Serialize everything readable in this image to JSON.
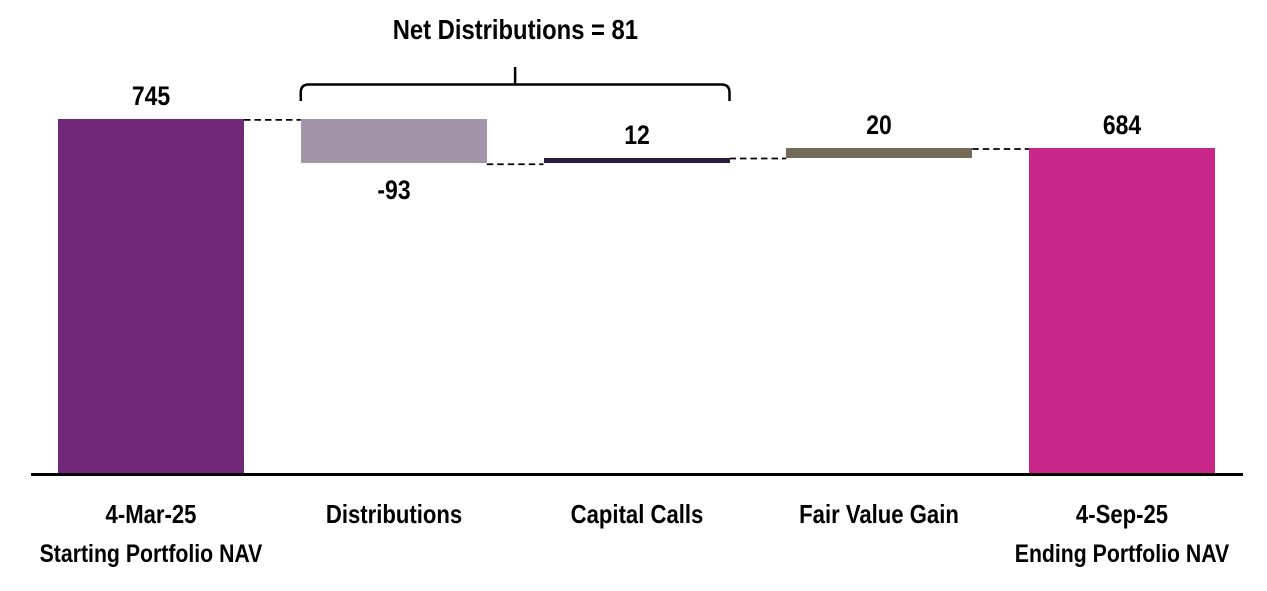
{
  "chart_data": {
    "type": "waterfall",
    "annotation": {
      "text": "Net Distributions = 81",
      "value": 81,
      "covers": [
        "Distributions",
        "Capital Calls"
      ]
    },
    "categories": [
      "4-Mar-25",
      "Distributions",
      "Capital Calls",
      "Fair Value Gain",
      "4-Sep-25"
    ],
    "bars": [
      {
        "label": "4-Mar-25",
        "sublabel": "Starting Portfolio NAV",
        "kind": "total",
        "value": 745,
        "display_value": "745",
        "color": "#722879",
        "value_label_position": "above"
      },
      {
        "label": "Distributions",
        "sublabel": "",
        "kind": "delta",
        "value": -93,
        "display_value": "-93",
        "color": "#A394A9",
        "value_label_position": "below"
      },
      {
        "label": "Capital Calls",
        "sublabel": "",
        "kind": "delta",
        "value": 12,
        "display_value": "12",
        "color": "#2B1A3C",
        "value_label_position": "above"
      },
      {
        "label": "Fair Value Gain",
        "sublabel": "",
        "kind": "delta",
        "value": 20,
        "display_value": "20",
        "color": "#736A58",
        "value_label_position": "above"
      },
      {
        "label": "4-Sep-25",
        "sublabel": "Ending Portfolio NAV",
        "kind": "total",
        "value": 684,
        "display_value": "684",
        "color": "#C92689",
        "value_label_position": "above"
      }
    ],
    "running_totals": [
      745,
      652,
      664,
      684,
      684
    ],
    "ylim": [
      0,
      745
    ],
    "grid": false,
    "legend": false,
    "axis_color": "#000000",
    "connector_style": "dashed",
    "text_color": "#000000",
    "background_color": "#FFFFFF"
  }
}
